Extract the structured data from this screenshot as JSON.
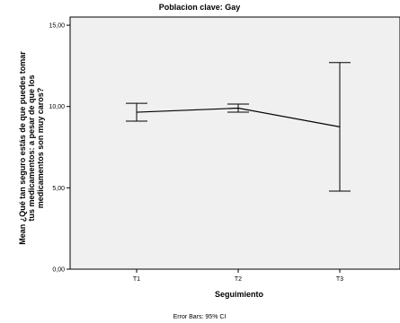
{
  "chart_data": {
    "type": "line",
    "title": "Poblacion clave: Gay",
    "xlabel": "Seguimiento",
    "ylabel_lines": [
      "Mean ¿Qué tan seguro estás de que puedes tomar",
      "tus medicamentos: a pesar de que los",
      "medicamentos son muy caros?"
    ],
    "categories": [
      "T1",
      "T2",
      "T3"
    ],
    "series": [
      {
        "values": [
          9.65,
          9.9,
          8.75
        ],
        "error_low": [
          9.1,
          9.65,
          4.8
        ],
        "error_high": [
          10.2,
          10.15,
          12.7
        ]
      }
    ],
    "yticks": [
      "0,00",
      "5,00",
      "10,00",
      "15,00"
    ],
    "ytick_values": [
      0,
      5,
      10,
      15
    ],
    "ylim": [
      0,
      15.5
    ],
    "grid": false,
    "footnote": "Error Bars: 95% CI",
    "colors": {
      "plot_background": "#f0f0f0",
      "line": "#000000"
    }
  }
}
